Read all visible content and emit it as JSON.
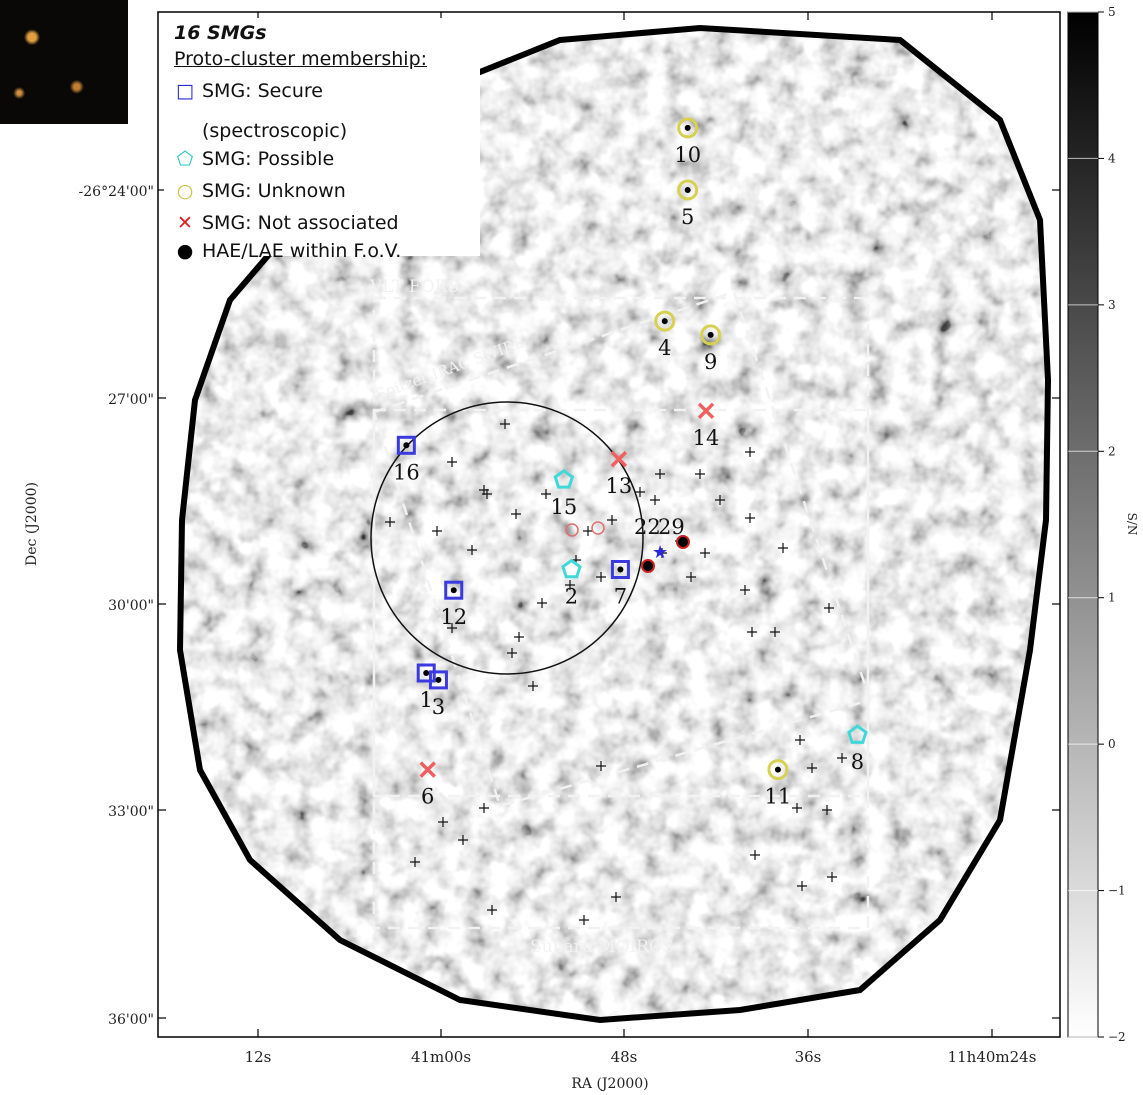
{
  "chart_data": {
    "type": "scatter",
    "title": "",
    "xlabel": "RA (J2000)",
    "ylabel": "Dec (J2000)",
    "x_ticks": [
      "12s",
      "41m00s",
      "48s",
      "36s",
      "11h40m24s"
    ],
    "y_ticks": [
      "-26°24'00\"",
      "27'00\"",
      "30'00\"",
      "33'00\"",
      "36'00\""
    ],
    "colorbar": {
      "label": "S/N",
      "range": [
        -2,
        5
      ],
      "ticks": [
        "5",
        "4",
        "3",
        "2",
        "1",
        "0",
        "−1",
        "−2"
      ]
    },
    "legend_position": "top-left",
    "legend": {
      "title": "16 SMGs",
      "subtitle": "Proto-cluster membership:",
      "entries": [
        {
          "symbol": "square",
          "color": "#2a2ad8",
          "label": "SMG: Secure"
        },
        {
          "symbol": "pentagon",
          "color": "#22c8c8",
          "label": "SMG: Possible"
        },
        {
          "symbol": "circle",
          "color": "#c8c040",
          "label": "SMG: Unknown"
        },
        {
          "symbol": "cross",
          "color": "#e02020",
          "label": "SMG: Not associated"
        },
        {
          "symbol": "dot",
          "color": "#000000",
          "label": "HAE/LAE within F.o.V."
        }
      ],
      "secure_note": "(spectroscopic)"
    },
    "field_labels": [
      "VLT FORS",
      "Spitzer IRAC SWIRE",
      "Subaru MOIRCS"
    ],
    "extra_labels": [
      "22",
      "29"
    ],
    "sources": [
      {
        "id": "1",
        "class": "secure",
        "ra_s": 1.0,
        "dec": 31.0
      },
      {
        "id": "3",
        "class": "secure",
        "ra_s": 0.2,
        "dec": 31.1
      },
      {
        "id": "12",
        "class": "secure",
        "ra_s": 59.2,
        "dec": 29.8
      },
      {
        "id": "7",
        "class": "secure",
        "ra_s": 48.3,
        "dec": 29.5
      },
      {
        "id": "16",
        "class": "secure",
        "ra_s": 2.3,
        "dec": 27.7
      },
      {
        "id": "2",
        "class": "possible",
        "ra_s": 51.5,
        "dec": 29.5
      },
      {
        "id": "15",
        "class": "possible",
        "ra_s": 52.0,
        "dec": 28.2
      },
      {
        "id": "8",
        "class": "possible",
        "ra_s": 32.8,
        "dec": 31.9
      },
      {
        "id": "10",
        "class": "unknown",
        "ra_s": 43.9,
        "dec": 23.1
      },
      {
        "id": "5",
        "class": "unknown",
        "ra_s": 43.9,
        "dec": 24.0
      },
      {
        "id": "4",
        "class": "unknown",
        "ra_s": 45.4,
        "dec": 25.9
      },
      {
        "id": "9",
        "class": "unknown",
        "ra_s": 42.4,
        "dec": 26.1
      },
      {
        "id": "11",
        "class": "unknown",
        "ra_s": 38.0,
        "dec": 32.4
      },
      {
        "id": "13",
        "class": "not_associated",
        "ra_s": 48.4,
        "dec": 27.9
      },
      {
        "id": "14",
        "class": "not_associated",
        "ra_s": 42.7,
        "dec": 27.2
      },
      {
        "id": "6",
        "class": "not_associated",
        "ra_s": 0.9,
        "dec": 32.4
      }
    ]
  }
}
